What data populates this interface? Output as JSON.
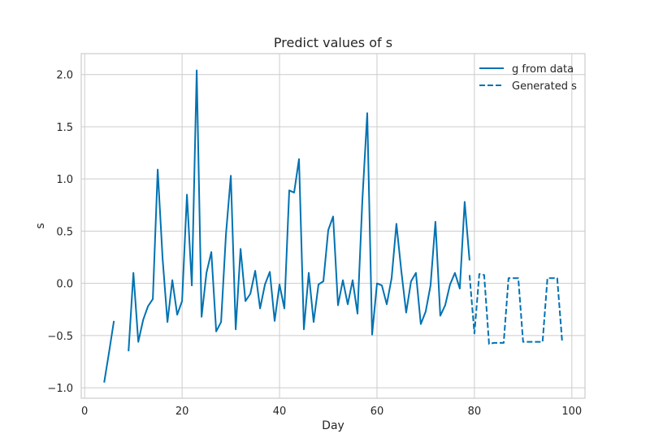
{
  "chart_data": {
    "type": "line",
    "title": "Predict values of s",
    "xlabel": "Day",
    "ylabel": "s",
    "xlim": [
      -0.7,
      102.7
    ],
    "ylim": [
      -1.1,
      2.2
    ],
    "xticks": [
      0,
      20,
      40,
      60,
      80,
      100
    ],
    "yticks": [
      -1.0,
      -0.5,
      0.0,
      0.5,
      1.0,
      1.5,
      2.0
    ],
    "xtick_labels": [
      "0",
      "20",
      "40",
      "60",
      "80",
      "100"
    ],
    "ytick_labels": [
      "−1.0",
      "−0.5",
      "0.0",
      "0.5",
      "1.0",
      "1.5",
      "2.0"
    ],
    "grid": true,
    "legend_position": "top-right",
    "series": [
      {
        "name": "g from data",
        "style": "solid",
        "color": "#0072B2",
        "points": [
          [
            4,
            -0.95
          ],
          [
            5,
            -0.66
          ],
          [
            6,
            -0.36
          ],
          [
            9,
            -0.65
          ],
          [
            10,
            0.1
          ],
          [
            11,
            -0.56
          ],
          [
            12,
            -0.35
          ],
          [
            13,
            -0.22
          ],
          [
            14,
            -0.15
          ],
          [
            15,
            1.09
          ],
          [
            16,
            0.24
          ],
          [
            17,
            -0.37
          ],
          [
            18,
            0.03
          ],
          [
            19,
            -0.3
          ],
          [
            20,
            -0.17
          ],
          [
            21,
            0.85
          ],
          [
            22,
            -0.02
          ],
          [
            23,
            2.04
          ],
          [
            24,
            -0.32
          ],
          [
            25,
            0.1
          ],
          [
            26,
            0.3
          ],
          [
            27,
            -0.46
          ],
          [
            28,
            -0.37
          ],
          [
            29,
            0.47
          ],
          [
            30,
            1.03
          ],
          [
            31,
            -0.44
          ],
          [
            32,
            0.33
          ],
          [
            33,
            -0.17
          ],
          [
            34,
            -0.1
          ],
          [
            35,
            0.12
          ],
          [
            36,
            -0.24
          ],
          [
            37,
            -0.01
          ],
          [
            38,
            0.11
          ],
          [
            39,
            -0.36
          ],
          [
            40,
            -0.01
          ],
          [
            41,
            -0.24
          ],
          [
            42,
            0.89
          ],
          [
            43,
            0.87
          ],
          [
            44,
            1.19
          ],
          [
            45,
            -0.44
          ],
          [
            46,
            0.1
          ],
          [
            47,
            -0.37
          ],
          [
            48,
            -0.01
          ],
          [
            49,
            0.02
          ],
          [
            50,
            0.51
          ],
          [
            51,
            0.64
          ],
          [
            52,
            -0.21
          ],
          [
            53,
            0.03
          ],
          [
            54,
            -0.2
          ],
          [
            55,
            0.03
          ],
          [
            56,
            -0.29
          ],
          [
            57,
            0.8
          ],
          [
            58,
            1.63
          ],
          [
            59,
            -0.49
          ],
          [
            60,
            0.0
          ],
          [
            61,
            -0.02
          ],
          [
            62,
            -0.2
          ],
          [
            63,
            0.05
          ],
          [
            64,
            0.57
          ],
          [
            65,
            0.12
          ],
          [
            66,
            -0.28
          ],
          [
            67,
            0.02
          ],
          [
            68,
            0.1
          ],
          [
            69,
            -0.39
          ],
          [
            70,
            -0.27
          ],
          [
            71,
            -0.02
          ],
          [
            72,
            0.59
          ],
          [
            73,
            -0.31
          ],
          [
            74,
            -0.21
          ],
          [
            75,
            -0.01
          ],
          [
            76,
            0.1
          ],
          [
            77,
            -0.05
          ],
          [
            78,
            0.78
          ],
          [
            79,
            0.22
          ]
        ]
      },
      {
        "name": "Generated s",
        "style": "dashed",
        "color": "#0072B2",
        "points": [
          [
            79,
            0.08
          ],
          [
            80,
            -0.48
          ],
          [
            81,
            0.09
          ],
          [
            82,
            0.08
          ],
          [
            83,
            -0.58
          ],
          [
            84,
            -0.57
          ],
          [
            85,
            -0.57
          ],
          [
            86,
            -0.57
          ],
          [
            87,
            0.05
          ],
          [
            88,
            0.05
          ],
          [
            89,
            0.05
          ],
          [
            90,
            -0.56
          ],
          [
            91,
            -0.56
          ],
          [
            92,
            -0.56
          ],
          [
            93,
            -0.56
          ],
          [
            94,
            -0.56
          ],
          [
            95,
            0.05
          ],
          [
            96,
            0.05
          ],
          [
            97,
            0.05
          ],
          [
            98,
            -0.55
          ]
        ]
      }
    ]
  }
}
